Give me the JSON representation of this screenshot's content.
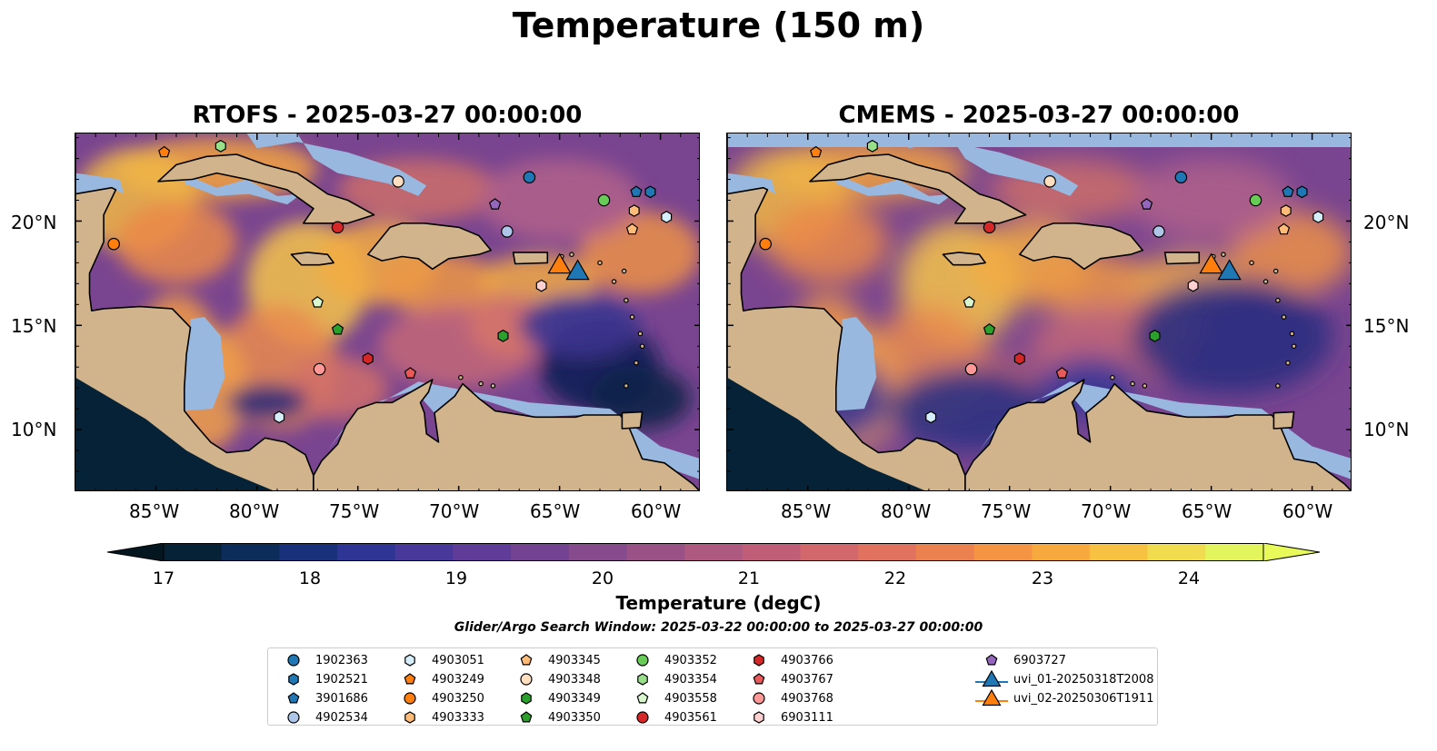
{
  "figure": {
    "suptitle": "Temperature (150 m)",
    "panels": [
      {
        "title": "RTOFS - 2025-03-27 00:00:00"
      },
      {
        "title": "CMEMS - 2025-03-27 00:00:00"
      }
    ],
    "lon_ticks": [
      "85°W",
      "80°W",
      "75°W",
      "70°W",
      "65°W",
      "60°W"
    ],
    "lat_ticks": [
      "20°N",
      "15°N",
      "10°N"
    ],
    "extent": {
      "lon": [
        -89,
        -58
      ],
      "lat": [
        7,
        24.2
      ]
    }
  },
  "colorbar": {
    "label": "Temperature (degC)",
    "ticks": [
      "17",
      "18",
      "19",
      "20",
      "21",
      "22",
      "23",
      "24"
    ],
    "range": [
      16.5,
      24.5
    ],
    "colors": [
      "#062236",
      "#0c2d5a",
      "#18317a",
      "#2f3595",
      "#48389a",
      "#5f3c98",
      "#734392",
      "#864b8c",
      "#9a5286",
      "#ae5a80",
      "#c15e77",
      "#d2676c",
      "#e0725f",
      "#ec8150",
      "#f59443",
      "#f8a93e",
      "#f7c142",
      "#f1db4e",
      "#e3f55c"
    ],
    "extend_colors": {
      "under": "#04161f",
      "over": "#e8fa5a"
    }
  },
  "search_window": "Glider/Argo Search Window: 2025-03-22 00:00:00 to 2025-03-27 00:00:00",
  "colors": {
    "land": "#d2b48c",
    "shelf": "#98b8e0",
    "coast": "#000000"
  },
  "legend": {
    "items": [
      {
        "label": "1902363",
        "marker": "circle",
        "color": "#1f77b4"
      },
      {
        "label": "1902521",
        "marker": "hexagon",
        "color": "#1f77b4"
      },
      {
        "label": "3901686",
        "marker": "pentagon",
        "color": "#1f77b4"
      },
      {
        "label": "4902534",
        "marker": "circle",
        "color": "#aec7e8"
      },
      {
        "label": "4903051",
        "marker": "hexagon",
        "color": "#d6eefa"
      },
      {
        "label": "4903249",
        "marker": "pentagon",
        "color": "#ff7f0e"
      },
      {
        "label": "4903250",
        "marker": "circle",
        "color": "#ff7f0e"
      },
      {
        "label": "4903333",
        "marker": "hexagon",
        "color": "#ffbb78"
      },
      {
        "label": "4903345",
        "marker": "pentagon",
        "color": "#ffbb78"
      },
      {
        "label": "4903348",
        "marker": "circle",
        "color": "#ffdfc0"
      },
      {
        "label": "4903349",
        "marker": "hexagon",
        "color": "#2ca02c"
      },
      {
        "label": "4903350",
        "marker": "pentagon",
        "color": "#2ca02c"
      },
      {
        "label": "4903352",
        "marker": "circle",
        "color": "#66cc55"
      },
      {
        "label": "4903354",
        "marker": "hexagon",
        "color": "#98df8a"
      },
      {
        "label": "4903558",
        "marker": "pentagon",
        "color": "#d9f7cf"
      },
      {
        "label": "4903561",
        "marker": "circle",
        "color": "#d62728"
      },
      {
        "label": "4903766",
        "marker": "hexagon",
        "color": "#d62728"
      },
      {
        "label": "4903767",
        "marker": "pentagon",
        "color": "#e8595a"
      },
      {
        "label": "4903768",
        "marker": "circle",
        "color": "#ff9896"
      },
      {
        "label": "6903111",
        "marker": "hexagon",
        "color": "#ffd0d0"
      },
      {
        "label": "6903727",
        "marker": "pentagon",
        "color": "#9467bd"
      },
      {
        "label": "uvi_01-20250318T2008",
        "marker": "triangle",
        "color": "#1f77b4"
      },
      {
        "label": "uvi_02-20250306T1911",
        "marker": "triangle",
        "color": "#ff7f0e"
      }
    ]
  },
  "markers": [
    {
      "id": "1902363",
      "lon": -66.5,
      "lat": 22.1
    },
    {
      "id": "1902521",
      "lon": -60.5,
      "lat": 21.4
    },
    {
      "id": "3901686",
      "lon": -61.2,
      "lat": 21.4
    },
    {
      "id": "4902534",
      "lon": -67.6,
      "lat": 19.5
    },
    {
      "id": "4903051",
      "lon": -59.7,
      "lat": 20.2
    },
    {
      "id": "4903249",
      "lon": -84.6,
      "lat": 23.3
    },
    {
      "id": "4903250",
      "lon": -87.1,
      "lat": 18.9
    },
    {
      "id": "4903333",
      "lon": -61.3,
      "lat": 20.5
    },
    {
      "id": "4903345",
      "lon": -61.4,
      "lat": 19.6
    },
    {
      "id": "4903348",
      "lon": -73.0,
      "lat": 21.9
    },
    {
      "id": "4903349",
      "lon": -67.8,
      "lat": 14.5
    },
    {
      "id": "4903350",
      "lon": -76.0,
      "lat": 14.8
    },
    {
      "id": "4903352",
      "lon": -62.8,
      "lat": 21.0
    },
    {
      "id": "4903354",
      "lon": -81.8,
      "lat": 23.6
    },
    {
      "id": "4903558",
      "lon": -77.0,
      "lat": 16.1
    },
    {
      "id": "4903561",
      "lon": -76.0,
      "lat": 19.7
    },
    {
      "id": "4903766",
      "lon": -74.5,
      "lat": 13.4
    },
    {
      "id": "4903767",
      "lon": -72.4,
      "lat": 12.7
    },
    {
      "id": "4903768",
      "lon": -76.9,
      "lat": 12.9
    },
    {
      "id": "6903111",
      "lon": -65.9,
      "lat": 16.9
    },
    {
      "id": "6903727",
      "lon": -68.2,
      "lat": 20.8
    },
    {
      "id": "4903051b",
      "lon": -78.9,
      "lat": 10.6
    }
  ],
  "gliders": [
    {
      "id": "uvi_02-20250306T1911",
      "lon": -65.0,
      "lat": 17.9
    },
    {
      "id": "uvi_01-20250318T2008",
      "lon": -64.1,
      "lat": 17.6
    }
  ]
}
